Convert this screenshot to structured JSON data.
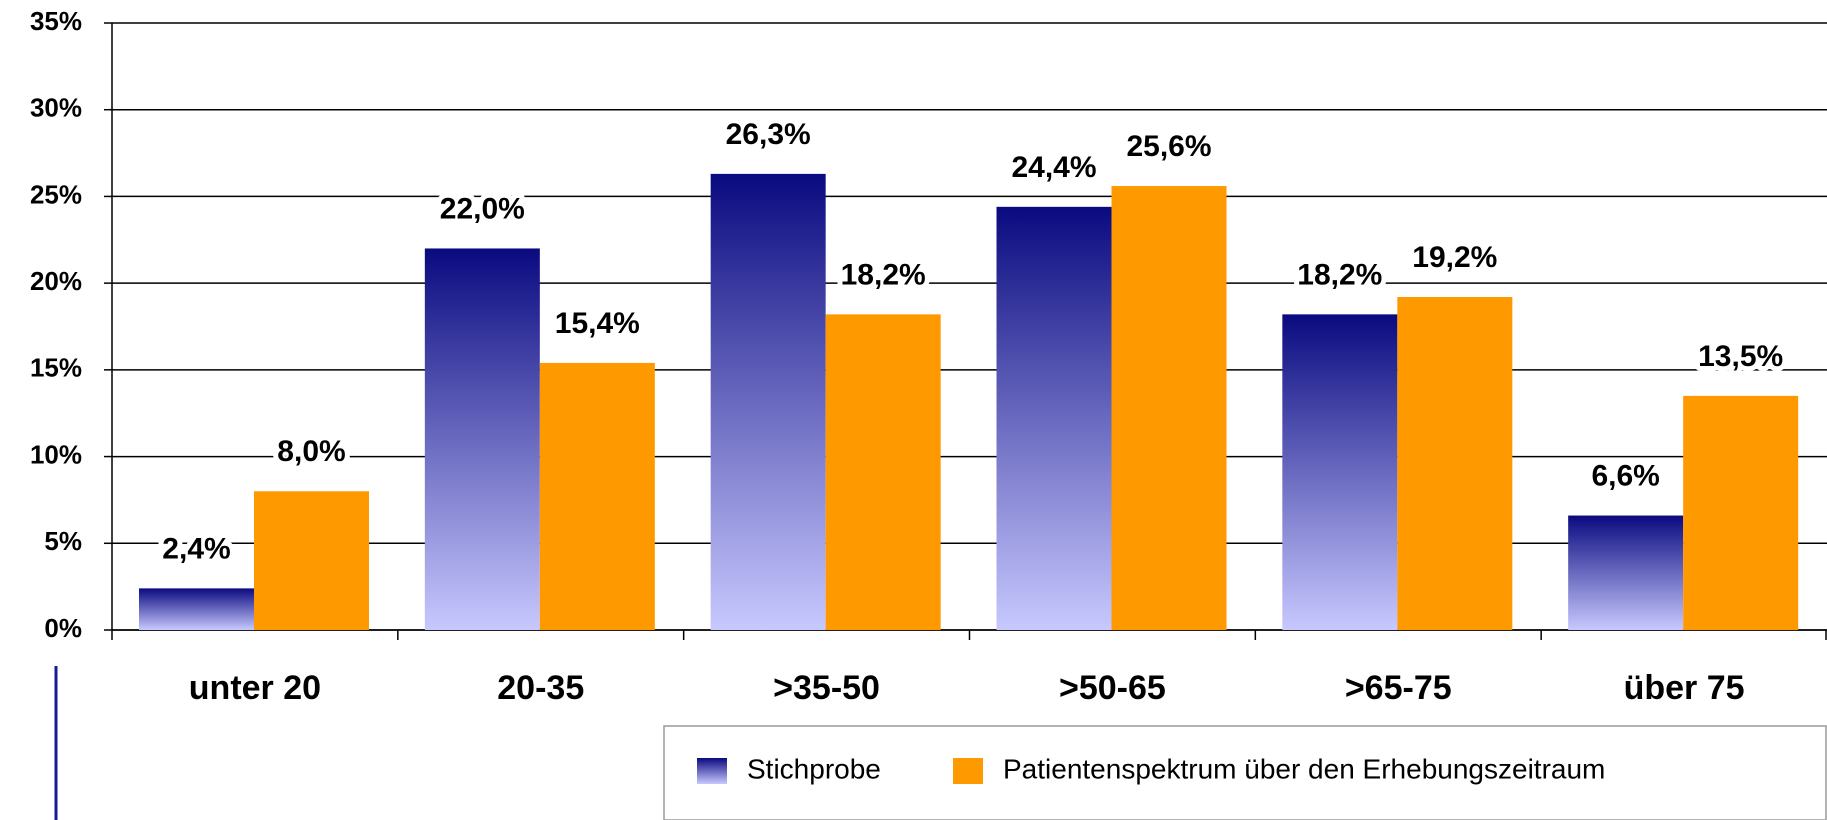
{
  "chart_data": {
    "type": "bar",
    "categories": [
      "unter 20",
      "20-35",
      ">35-50",
      ">50-65",
      ">65-75",
      "über 75"
    ],
    "series": [
      {
        "name": "Stichprobe",
        "color": "#0a0a80",
        "values": [
          2.4,
          22.0,
          26.3,
          24.4,
          18.2,
          6.6
        ],
        "value_labels": [
          "2,4%",
          "22,0%",
          "26,3%",
          "24,4%",
          "18,2%",
          "6,6%"
        ]
      },
      {
        "name": "Patientenspektrum über den Erhebungszeitraum",
        "color": "#ff9900",
        "values": [
          8.0,
          15.4,
          18.2,
          25.6,
          19.2,
          13.5
        ],
        "value_labels": [
          "8,0%",
          "15,4%",
          "18,2%",
          "25,6%",
          "19,2%",
          "13,5%"
        ]
      }
    ],
    "ylim": [
      0,
      35
    ],
    "yticks": [
      {
        "value": 0,
        "label": "0%"
      },
      {
        "value": 5,
        "label": "5%"
      },
      {
        "value": 10,
        "label": "10%"
      },
      {
        "value": 15,
        "label": "15%"
      },
      {
        "value": 20,
        "label": "20%"
      },
      {
        "value": 25,
        "label": "25%"
      },
      {
        "value": 30,
        "label": "30%"
      },
      {
        "value": 35,
        "label": "35%"
      }
    ],
    "grid": true,
    "legend": "bottom-right"
  }
}
